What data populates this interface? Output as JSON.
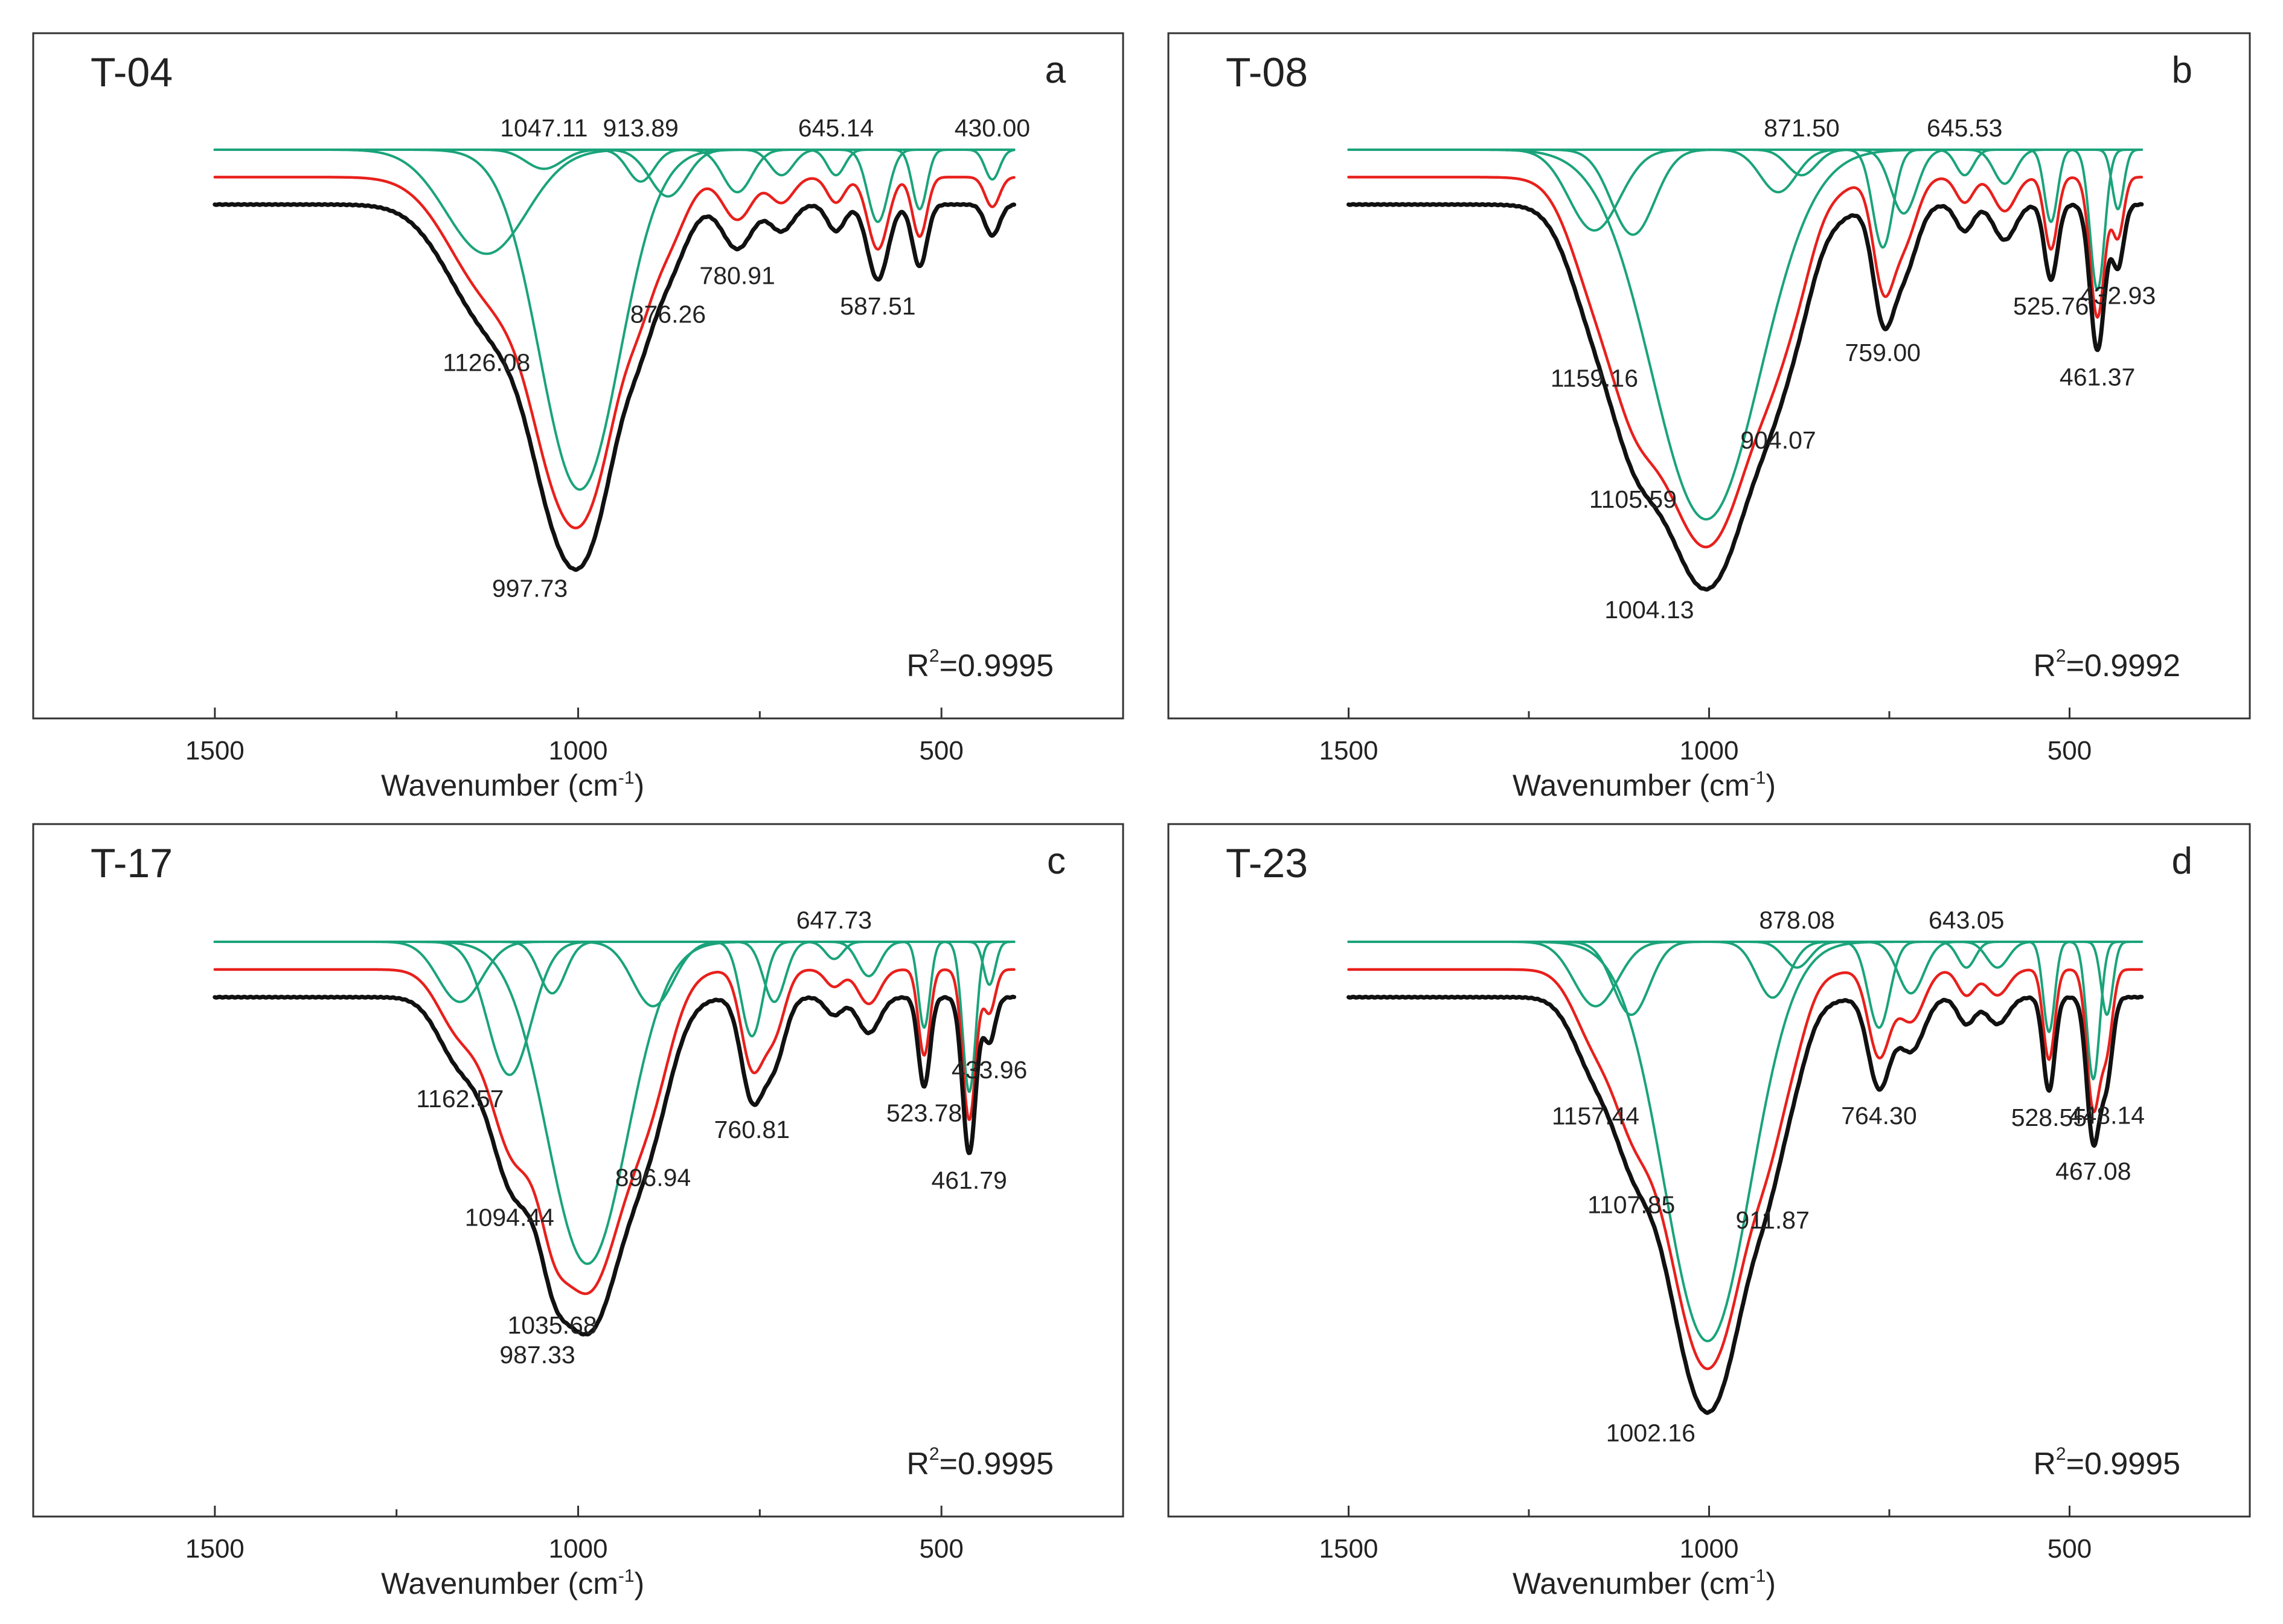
{
  "figure": {
    "colors": {
      "measured": "#111111",
      "fitted": "#e8201c",
      "components": "#1aa37a"
    }
  },
  "chart_data": [
    {
      "type": "line",
      "panel": "a",
      "title": "T-04",
      "xlabel": "Wavenumber",
      "xlabel_unit": "(cm",
      "xlabel_unit_sup": "-1",
      "xlabel_unit_end": ")",
      "x_ticks": [
        1500,
        1000,
        500
      ],
      "x_tick_labels": [
        "1500",
        "1000",
        "500"
      ],
      "xlim": [
        1750,
        250
      ],
      "data_range": [
        1500,
        400
      ],
      "r2_prefix": "R",
      "r2_sup": "2",
      "r2_value": "=0.9995",
      "peaks": [
        {
          "x": 1126.08,
          "label": "1126.08",
          "depth": 0.245,
          "width": 55
        },
        {
          "x": 1047.11,
          "label": "1047.11",
          "depth": 0.045,
          "width": 25
        },
        {
          "x": 997.73,
          "label": "997.73",
          "depth": 0.8,
          "width": 55
        },
        {
          "x": 913.89,
          "label": "913.89",
          "depth": 0.075,
          "width": 18
        },
        {
          "x": 876.26,
          "label": "876.26",
          "depth": 0.11,
          "width": 25
        },
        {
          "x": 780.91,
          "label": "780.91",
          "depth": 0.1,
          "width": 20
        },
        {
          "x": 720.0,
          "label": "",
          "depth": 0.06,
          "width": 16
        },
        {
          "x": 645.14,
          "label": "645.14",
          "depth": 0.06,
          "width": 12
        },
        {
          "x": 587.51,
          "label": "587.51",
          "depth": 0.17,
          "width": 14
        },
        {
          "x": 530.0,
          "label": "",
          "depth": 0.14,
          "width": 10
        },
        {
          "x": 430.0,
          "label": "430.00",
          "depth": 0.07,
          "width": 10
        }
      ]
    },
    {
      "type": "line",
      "panel": "b",
      "title": "T-08",
      "xlabel": "Wavenumber",
      "xlabel_unit": "(cm",
      "xlabel_unit_sup": "-1",
      "xlabel_unit_end": ")",
      "x_ticks": [
        1500,
        1000,
        500
      ],
      "x_tick_labels": [
        "1500",
        "1000",
        "500"
      ],
      "xlim": [
        1750,
        250
      ],
      "data_range": [
        1500,
        400
      ],
      "r2_prefix": "R",
      "r2_sup": "2",
      "r2_value": "=0.9992",
      "peaks": [
        {
          "x": 1159.16,
          "label": "1159.16",
          "depth": 0.19,
          "width": 35
        },
        {
          "x": 1105.59,
          "label": "1105.59",
          "depth": 0.2,
          "width": 30
        },
        {
          "x": 1004.13,
          "label": "1004.13",
          "depth": 0.87,
          "width": 75
        },
        {
          "x": 904.07,
          "label": "904.07",
          "depth": 0.1,
          "width": 25
        },
        {
          "x": 871.5,
          "label": "871.50",
          "depth": 0.06,
          "width": 20
        },
        {
          "x": 759.0,
          "label": "759.00",
          "depth": 0.23,
          "width": 14
        },
        {
          "x": 730.0,
          "label": "",
          "depth": 0.15,
          "width": 18
        },
        {
          "x": 645.53,
          "label": "645.53",
          "depth": 0.06,
          "width": 12
        },
        {
          "x": 590.0,
          "label": "",
          "depth": 0.08,
          "width": 15
        },
        {
          "x": 525.76,
          "label": "525.76",
          "depth": 0.17,
          "width": 9
        },
        {
          "x": 461.37,
          "label": "461.37",
          "depth": 0.33,
          "width": 10
        },
        {
          "x": 432.93,
          "label": "432.93",
          "depth": 0.14,
          "width": 8
        }
      ]
    },
    {
      "type": "line",
      "panel": "c",
      "title": "T-17",
      "xlabel": "Wavenumber",
      "xlabel_unit": "(cm",
      "xlabel_unit_sup": "-1",
      "xlabel_unit_end": ")",
      "x_ticks": [
        1500,
        1000,
        500
      ],
      "x_tick_labels": [
        "1500",
        "1000",
        "500"
      ],
      "xlim": [
        1750,
        250
      ],
      "data_range": [
        1500,
        400
      ],
      "r2_prefix": "R",
      "r2_sup": "2",
      "r2_value": "=0.9995",
      "peaks": [
        {
          "x": 1162.57,
          "label": "1162.57",
          "depth": 0.14,
          "width": 30
        },
        {
          "x": 1094.44,
          "label": "1094.44",
          "depth": 0.31,
          "width": 30
        },
        {
          "x": 1035.68,
          "label": "1035.68",
          "depth": 0.12,
          "width": 18
        },
        {
          "x": 987.33,
          "label": "987.33",
          "depth": 0.75,
          "width": 55
        },
        {
          "x": 896.94,
          "label": "896.94",
          "depth": 0.15,
          "width": 28
        },
        {
          "x": 760.81,
          "label": "760.81",
          "depth": 0.22,
          "width": 15
        },
        {
          "x": 730.0,
          "label": "",
          "depth": 0.14,
          "width": 15
        },
        {
          "x": 647.73,
          "label": "647.73",
          "depth": 0.04,
          "width": 12
        },
        {
          "x": 600.0,
          "label": "",
          "depth": 0.08,
          "width": 15
        },
        {
          "x": 523.78,
          "label": "523.78",
          "depth": 0.2,
          "width": 8
        },
        {
          "x": 461.79,
          "label": "461.79",
          "depth": 0.35,
          "width": 9
        },
        {
          "x": 433.96,
          "label": "433.96",
          "depth": 0.1,
          "width": 8
        }
      ]
    },
    {
      "type": "line",
      "panel": "d",
      "title": "T-23",
      "xlabel": "Wavenumber",
      "xlabel_unit": "(cm",
      "xlabel_unit_sup": "-1",
      "xlabel_unit_end": ")",
      "x_ticks": [
        1500,
        1000,
        500
      ],
      "x_tick_labels": [
        "1500",
        "1000",
        "500"
      ],
      "xlim": [
        1750,
        250
      ],
      "data_range": [
        1500,
        400
      ],
      "r2_prefix": "R",
      "r2_sup": "2",
      "r2_value": "=0.9995",
      "peaks": [
        {
          "x": 1157.44,
          "label": "1157.44",
          "depth": 0.15,
          "width": 30
        },
        {
          "x": 1107.85,
          "label": "1107.85",
          "depth": 0.17,
          "width": 25
        },
        {
          "x": 1002.16,
          "label": "1002.16",
          "depth": 0.93,
          "width": 60
        },
        {
          "x": 911.87,
          "label": "911.87",
          "depth": 0.13,
          "width": 22
        },
        {
          "x": 878.08,
          "label": "878.08",
          "depth": 0.06,
          "width": 18
        },
        {
          "x": 764.3,
          "label": "764.30",
          "depth": 0.2,
          "width": 15
        },
        {
          "x": 720.0,
          "label": "",
          "depth": 0.12,
          "width": 18
        },
        {
          "x": 643.05,
          "label": "643.05",
          "depth": 0.06,
          "width": 12
        },
        {
          "x": 600.0,
          "label": "",
          "depth": 0.06,
          "width": 15
        },
        {
          "x": 528.55,
          "label": "528.55",
          "depth": 0.21,
          "width": 8
        },
        {
          "x": 467.08,
          "label": "467.08",
          "depth": 0.32,
          "width": 9
        },
        {
          "x": 448.14,
          "label": "448.14",
          "depth": 0.17,
          "width": 8
        }
      ]
    }
  ]
}
